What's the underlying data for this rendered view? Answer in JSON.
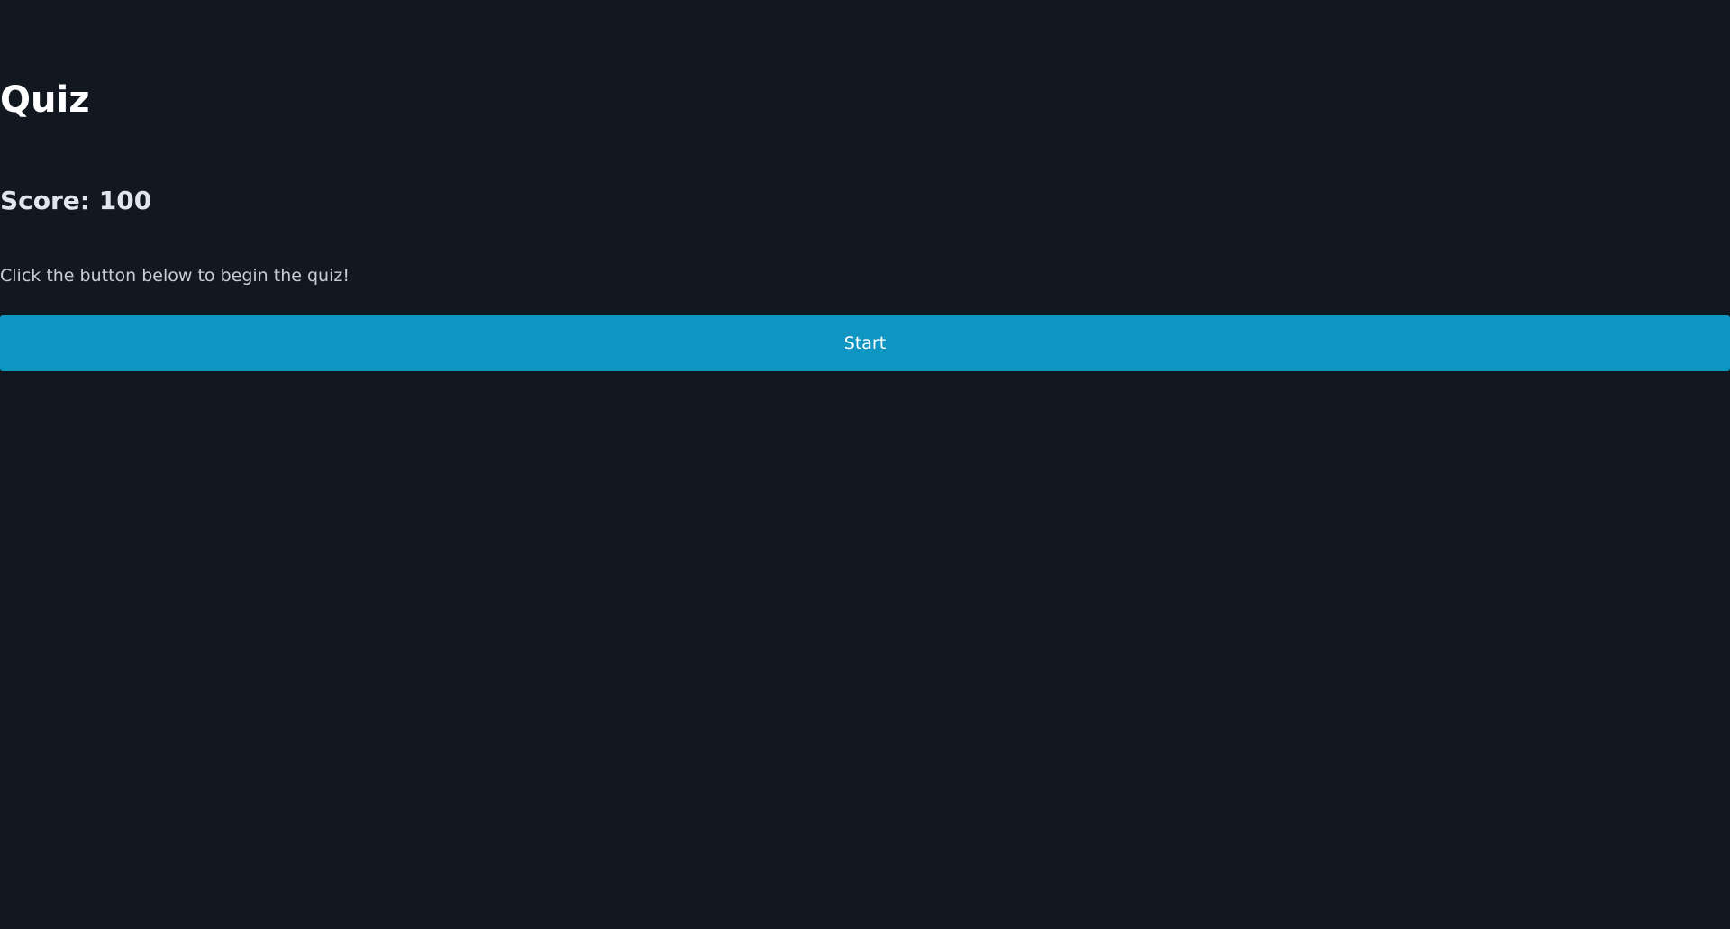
{
  "page": {
    "title": "Quiz",
    "score_text": "Score: 100",
    "instructions": "Click the button below to begin the quiz!"
  },
  "actions": {
    "start_label": "Start"
  },
  "colors": {
    "background": "#121820",
    "accent": "#0f95c2",
    "text_primary": "#ffffff"
  }
}
